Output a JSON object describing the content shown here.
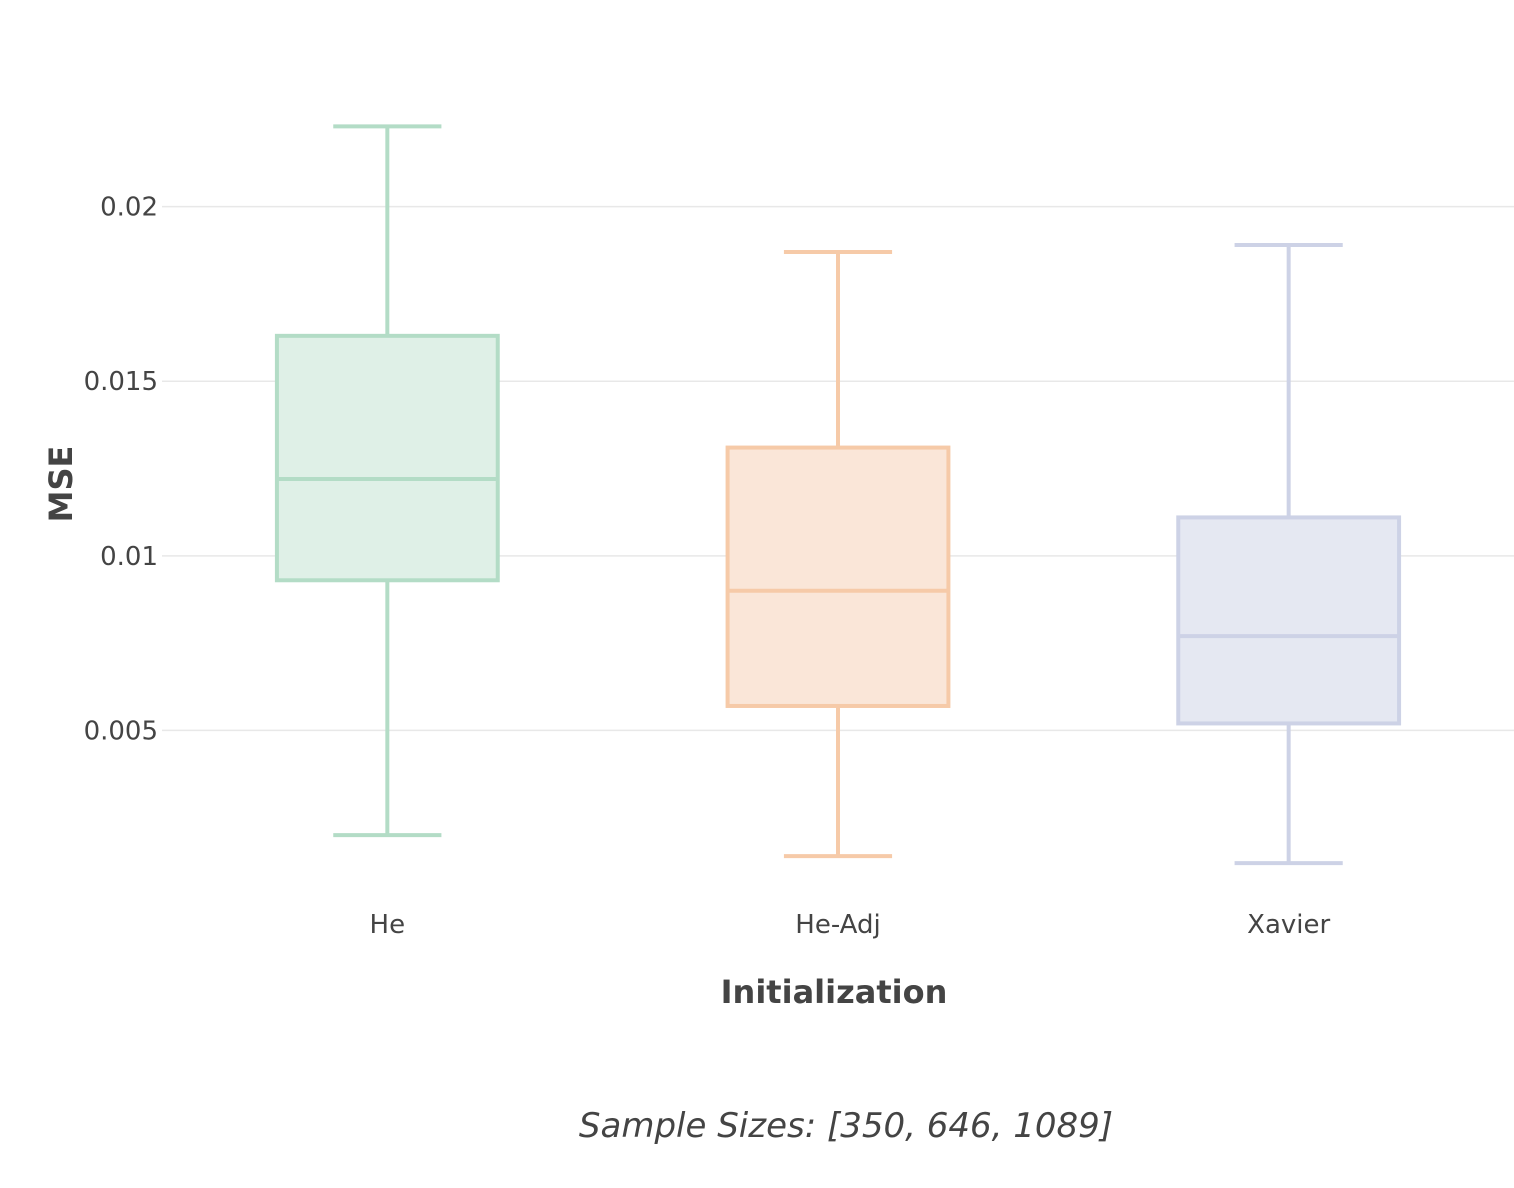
{
  "chart_data": {
    "type": "box",
    "xlabel": "Initialization",
    "ylabel": "MSE",
    "ylim": [
      0.0,
      0.0242
    ],
    "yticks": [
      0.005,
      0.01,
      0.015,
      0.02
    ],
    "ytick_labels": [
      "0.005",
      "0.01",
      "0.015",
      "0.02"
    ],
    "grid": true,
    "categories": [
      "He",
      "He-Adj",
      "Xavier"
    ],
    "boxes": [
      {
        "category": "He",
        "min": 0.002,
        "q1": 0.0093,
        "median": 0.0122,
        "q3": 0.0163,
        "max": 0.0223,
        "color": "#b3dcc6",
        "fill": "#dff0e7"
      },
      {
        "category": "He-Adj",
        "min": 0.0014,
        "q1": 0.0057,
        "median": 0.009,
        "q3": 0.0131,
        "max": 0.0187,
        "color": "#f6caa8",
        "fill": "#fae6d8"
      },
      {
        "category": "Xavier",
        "min": 0.0012,
        "q1": 0.0052,
        "median": 0.0077,
        "q3": 0.0111,
        "max": 0.0189,
        "color": "#cdd2e6",
        "fill": "#e5e8f2"
      }
    ],
    "annotation": "Sample Sizes: [350, 646, 1089]"
  }
}
